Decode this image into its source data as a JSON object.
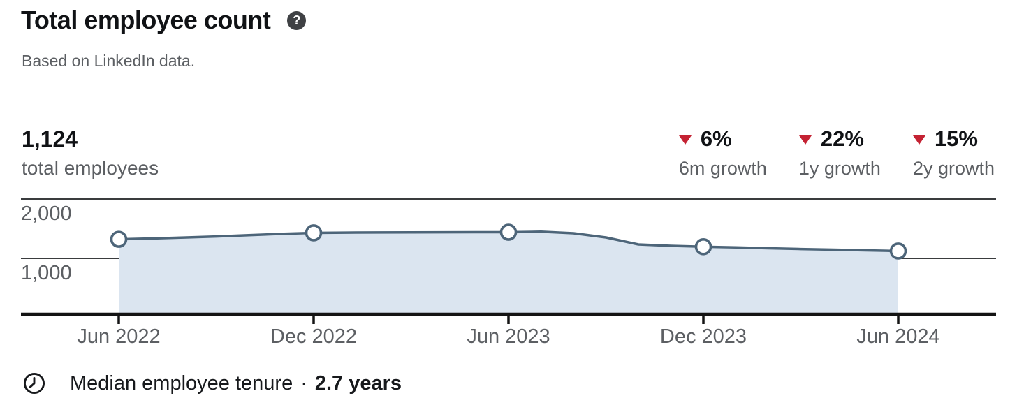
{
  "header": {
    "title": "Total employee count",
    "help_glyph": "?",
    "subtitle": "Based on LinkedIn data."
  },
  "summary": {
    "value": "1,124",
    "label": "total employees"
  },
  "growth_stats": [
    {
      "value": "6%",
      "label": "6m growth",
      "direction": "down"
    },
    {
      "value": "22%",
      "label": "1y growth",
      "direction": "down"
    },
    {
      "value": "15%",
      "label": "2y growth",
      "direction": "down"
    }
  ],
  "chart_data": {
    "type": "area",
    "title": "Total employee count",
    "xlabel": "",
    "ylabel": "",
    "x_tick_labels": [
      "Jun 2022",
      "Dec 2022",
      "Jun 2023",
      "Dec 2023",
      "Jun 2024"
    ],
    "series": [
      {
        "name": "total employees",
        "x": [
          "Jun 2022",
          "Dec 2022",
          "Jun 2023",
          "Dec 2023",
          "Jun 2024"
        ],
        "values": [
          1322,
          1430,
          1441,
          1196,
          1124
        ]
      }
    ],
    "monthly_detail": {
      "start": "Jun 2022",
      "interval_months": 1,
      "values": [
        1322,
        1335,
        1352,
        1370,
        1392,
        1413,
        1430,
        1434,
        1437,
        1439,
        1440,
        1441,
        1441,
        1449,
        1424,
        1353,
        1235,
        1212,
        1196,
        1185,
        1171,
        1158,
        1147,
        1135,
        1124
      ]
    },
    "marker_indices": [
      0,
      6,
      12,
      18,
      24
    ],
    "ylim": [
      0,
      2000
    ],
    "yticks": [
      {
        "value": 2000,
        "label": "2,000"
      },
      {
        "value": 1000,
        "label": "1,000"
      }
    ],
    "grid": "horizontal",
    "legend": "none",
    "marker": "open-circle"
  },
  "footer": {
    "label": "Median employee tenure",
    "separator": "·",
    "value": "2.7 years"
  },
  "colors": {
    "line": "#4d6579",
    "fill": "#dbe5f0",
    "negative": "#c42233",
    "text_primary": "#101215",
    "text_secondary": "#5c5f63",
    "axis": "#141414",
    "grid": "#3a3c3e",
    "help_bg": "#3f4144"
  }
}
